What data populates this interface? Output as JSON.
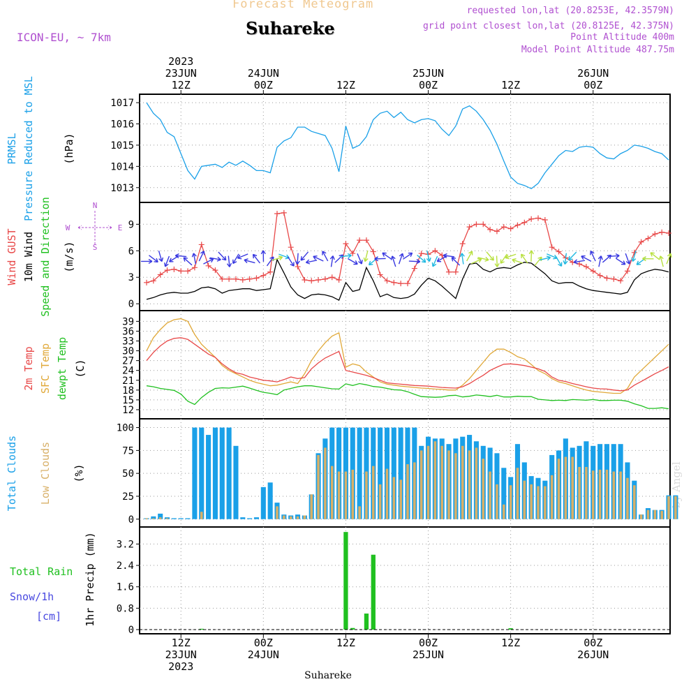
{
  "header": {
    "title": "Forecast Meteogram",
    "location": "Suhareke",
    "model": "ICON-EU, ~ 7km",
    "requested": "requested lon,lat (20.8253E, 42.3579N)",
    "grid_point": "grid point closest lon,lat (20.8125E, 42.375N)",
    "point_altitude": "Point Altitude 400m",
    "model_altitude": "Model Point Altitude 487.75m"
  },
  "footer_location": "Suhareke",
  "watermark": "by Angel",
  "colors": {
    "pressure": "#1aa0e8",
    "gust": "#e84848",
    "wind": "#000000",
    "direction": "#20c020",
    "temp": "#e84848",
    "sfc": "#e0a838",
    "dewpt": "#20c020",
    "total_clouds": "#1aa0e8",
    "low_clouds": "#d8b068",
    "rain": "#20c020",
    "snow": "#4848e0",
    "compass": "#b050d0"
  },
  "chart_data": [
    {
      "type": "line",
      "title": "PRMSL Pressure Reduced to MSL",
      "ylabel": "(hPa)",
      "ylim": [
        1012.5,
        1017.2
      ],
      "yticks": [
        1013,
        1014,
        1015,
        1016,
        1017
      ],
      "x_hours": [
        0,
        1,
        2,
        3,
        4,
        5,
        6,
        7,
        8,
        9,
        10,
        11,
        12,
        13,
        14,
        15,
        16,
        17,
        18,
        19,
        20,
        21,
        22,
        23,
        24,
        25,
        26,
        27,
        28,
        29,
        30,
        31,
        32,
        33,
        34,
        35,
        36,
        37,
        38,
        39,
        40,
        41,
        42,
        43,
        44,
        45,
        46,
        47,
        48,
        49,
        50,
        51,
        52,
        53,
        54,
        55,
        56,
        57,
        58,
        59,
        60,
        61,
        62,
        63,
        64,
        65,
        66,
        67,
        68,
        69,
        70,
        71,
        72,
        73,
        74,
        75,
        76
      ],
      "series": [
        {
          "name": "PRMSL",
          "values": [
            1017.0,
            1016.5,
            1016.2,
            1015.6,
            1015.4,
            1014.6,
            1013.8,
            1013.4,
            1014.0,
            1014.05,
            1014.1,
            1013.95,
            1014.2,
            1014.05,
            1014.25,
            1014.05,
            1013.8,
            1013.8,
            1013.7,
            1014.9,
            1015.2,
            1015.35,
            1015.85,
            1015.85,
            1015.65,
            1015.55,
            1015.45,
            1014.85,
            1013.75,
            1015.9,
            1014.85,
            1015.0,
            1015.4,
            1016.2,
            1016.5,
            1016.6,
            1016.3,
            1016.55,
            1016.2,
            1016.05,
            1016.2,
            1016.25,
            1016.15,
            1015.75,
            1015.45,
            1015.9,
            1016.7,
            1016.85,
            1016.6,
            1016.2,
            1015.7,
            1015.05,
            1014.25,
            1013.5,
            1013.2,
            1013.1,
            1012.95,
            1013.2,
            1013.7,
            1014.1,
            1014.5,
            1014.75,
            1014.7,
            1014.9,
            1014.95,
            1014.9,
            1014.6,
            1014.4,
            1014.35,
            1014.6,
            1014.75,
            1015.0,
            1014.95,
            1014.85,
            1014.7,
            1014.6,
            1014.3
          ]
        }
      ],
      "annotations": [
        "23JUN 12Z",
        "24JUN 00Z",
        "12Z",
        "25JUN 00Z",
        "12Z",
        "26JUN 00Z"
      ]
    },
    {
      "type": "line",
      "title": "Wind GUST / 10m Wind Speed and Direction",
      "ylabel": "(m/s)",
      "ylim": [
        -0.3,
        11.0
      ],
      "yticks": [
        0,
        3,
        6,
        9
      ],
      "compass": {
        "n": "N",
        "s": "S",
        "w": "W",
        "e": "E"
      },
      "series": [
        {
          "name": "Wind GUST",
          "values": [
            2.4,
            2.6,
            3.3,
            3.8,
            3.9,
            3.7,
            3.7,
            4.1,
            6.7,
            4.3,
            3.8,
            2.8,
            2.8,
            2.8,
            2.7,
            2.8,
            2.9,
            3.2,
            3.6,
            10.2,
            10.3,
            6.4,
            4.2,
            2.7,
            2.6,
            2.7,
            2.8,
            3.0,
            2.7,
            6.8,
            5.7,
            7.2,
            7.2,
            5.9,
            3.3,
            2.6,
            2.4,
            2.3,
            2.3,
            4.0,
            5.7,
            5.6,
            6.0,
            5.5,
            3.6,
            3.6,
            6.8,
            8.7,
            9.0,
            9.0,
            8.4,
            8.2,
            8.7,
            8.5,
            8.9,
            9.2,
            9.6,
            9.7,
            9.5,
            6.4,
            5.9,
            5.2,
            4.7,
            4.5,
            4.2,
            3.7,
            3.2,
            2.9,
            2.8,
            2.6,
            3.7,
            5.8,
            7.0,
            7.4,
            7.9,
            8.1,
            8.0
          ]
        },
        {
          "name": "10m Wind",
          "values": [
            0.5,
            0.7,
            1.0,
            1.2,
            1.3,
            1.2,
            1.2,
            1.4,
            1.8,
            1.9,
            1.7,
            1.2,
            1.5,
            1.6,
            1.7,
            1.7,
            1.5,
            1.6,
            1.7,
            5.0,
            3.5,
            1.9,
            1.0,
            0.6,
            1.0,
            1.1,
            1.0,
            0.8,
            0.4,
            2.4,
            1.4,
            1.6,
            4.1,
            2.6,
            0.8,
            1.1,
            0.7,
            0.6,
            0.7,
            1.1,
            2.1,
            2.9,
            2.6,
            2.0,
            1.3,
            0.6,
            2.8,
            4.5,
            4.6,
            3.9,
            3.6,
            4.0,
            4.1,
            4.0,
            4.4,
            4.7,
            4.6,
            4.0,
            3.4,
            2.6,
            2.3,
            2.4,
            2.4,
            2.0,
            1.7,
            1.5,
            1.4,
            1.3,
            1.2,
            1.1,
            1.3,
            2.7,
            3.4,
            3.7,
            3.9,
            3.8,
            3.6
          ]
        }
      ]
    },
    {
      "type": "line",
      "title": "2m Temp / SFC Temp / dewpt Temp",
      "ylabel": "(C)",
      "ylim": [
        10.5,
        41.0
      ],
      "yticks": [
        12,
        15,
        18,
        21,
        24,
        27,
        30,
        33,
        36,
        39
      ],
      "series": [
        {
          "name": "2m Temp",
          "values": [
            27.0,
            29.5,
            31.5,
            33.0,
            33.8,
            34.0,
            33.5,
            32.0,
            30.5,
            29.0,
            28.0,
            26.0,
            24.5,
            23.3,
            22.8,
            22.0,
            21.5,
            21.0,
            20.8,
            20.5,
            21.2,
            22.0,
            21.5,
            21.8,
            24.5,
            26.3,
            27.8,
            28.8,
            29.8,
            24.0,
            23.5,
            23.0,
            22.5,
            21.8,
            21.0,
            20.2,
            20.0,
            19.8,
            19.6,
            19.4,
            19.3,
            19.2,
            19.0,
            18.8,
            18.7,
            18.6,
            19.0,
            20.0,
            21.3,
            22.5,
            24.0,
            25.0,
            25.9,
            26.0,
            25.8,
            25.5,
            25.0,
            24.5,
            23.7,
            22.0,
            21.0,
            20.6,
            20.0,
            19.5,
            19.0,
            18.6,
            18.4,
            18.3,
            18.0,
            17.8,
            18.0,
            19.5,
            20.6,
            21.8,
            23.0,
            24.0,
            25.1
          ]
        },
        {
          "name": "SFC Temp",
          "values": [
            30.0,
            34.0,
            36.5,
            38.5,
            39.5,
            39.8,
            39.0,
            35.0,
            32.0,
            30.0,
            28.0,
            25.5,
            24.0,
            23.0,
            22.0,
            21.0,
            20.3,
            19.8,
            19.3,
            19.5,
            20.0,
            20.5,
            20.0,
            23.0,
            27.0,
            30.0,
            32.5,
            34.5,
            35.5,
            25.0,
            26.0,
            25.5,
            23.5,
            22.0,
            20.5,
            19.8,
            19.5,
            19.2,
            19.0,
            18.8,
            18.6,
            18.5,
            18.3,
            18.2,
            18.0,
            18.0,
            19.5,
            21.5,
            24.0,
            26.5,
            29.0,
            30.5,
            30.5,
            29.5,
            28.2,
            27.5,
            25.8,
            24.0,
            23.0,
            21.5,
            20.5,
            20.0,
            19.3,
            18.6,
            18.0,
            17.6,
            17.4,
            17.2,
            17.0,
            17.0,
            18.5,
            22.0,
            24.0,
            26.0,
            28.0,
            30.0,
            32.0
          ]
        },
        {
          "name": "dewpt Temp",
          "values": [
            19.3,
            19.0,
            18.5,
            18.2,
            17.9,
            16.8,
            14.6,
            13.6,
            15.7,
            17.3,
            18.5,
            18.7,
            18.6,
            18.9,
            19.2,
            18.6,
            17.9,
            17.3,
            17.0,
            16.6,
            18.0,
            18.5,
            19.0,
            19.3,
            19.3,
            19.0,
            18.7,
            18.4,
            18.3,
            19.9,
            19.4,
            20.0,
            19.6,
            19.1,
            18.9,
            18.5,
            18.1,
            18.0,
            17.5,
            16.7,
            16.0,
            15.9,
            15.8,
            15.9,
            16.3,
            16.4,
            15.9,
            16.1,
            16.5,
            16.3,
            16.0,
            16.4,
            15.9,
            15.9,
            16.1,
            16.0,
            16.0,
            15.2,
            15.0,
            14.8,
            14.9,
            14.8,
            15.1,
            15.0,
            14.9,
            15.1,
            14.8,
            14.8,
            14.9,
            14.9,
            14.6,
            13.8,
            13.2,
            12.4,
            12.4,
            12.6,
            12.3
          ]
        }
      ]
    },
    {
      "type": "bar",
      "title": "Total Clouds / Low Clouds",
      "ylabel": "(%)",
      "ylim": [
        -4,
        105
      ],
      "yticks": [
        0,
        25,
        50,
        75,
        100
      ],
      "series": [
        {
          "name": "Total Clouds",
          "values": [
            1,
            3,
            6,
            2,
            1,
            1,
            1,
            100,
            100,
            92,
            100,
            100,
            100,
            80,
            2,
            1,
            2,
            35,
            40,
            18,
            5,
            4,
            5,
            4,
            27,
            72,
            88,
            100,
            100,
            100,
            100,
            100,
            100,
            100,
            100,
            100,
            100,
            100,
            100,
            100,
            80,
            90,
            88,
            88,
            82,
            88,
            90,
            92,
            85,
            80,
            78,
            72,
            56,
            46,
            82,
            62,
            47,
            45,
            42,
            70,
            75,
            88,
            78,
            80,
            85,
            80,
            82,
            82,
            82,
            82,
            62,
            42,
            5,
            12,
            10,
            10,
            26,
            26
          ]
        },
        {
          "name": "Low Clouds",
          "values": [
            1,
            1,
            2,
            1,
            0,
            0,
            0,
            0,
            8,
            0,
            0,
            0,
            0,
            0,
            0,
            0,
            0,
            0,
            0,
            14,
            4,
            3,
            3,
            4,
            27,
            70,
            78,
            58,
            52,
            52,
            54,
            14,
            52,
            58,
            38,
            55,
            46,
            43,
            60,
            62,
            75,
            80,
            85,
            80,
            75,
            72,
            80,
            75,
            78,
            66,
            52,
            38,
            16,
            37,
            56,
            42,
            38,
            36,
            36,
            48,
            66,
            68,
            68,
            57,
            57,
            53,
            54,
            54,
            52,
            52,
            45,
            37,
            5,
            10,
            10,
            9,
            25,
            25
          ]
        }
      ]
    },
    {
      "type": "bar",
      "title": "Total Rain / Snow/1h [cm]",
      "ylabel": "1hr Precip (mm)",
      "ylim": [
        0,
        3.68
      ],
      "yticks": [
        0,
        0.8,
        1.6,
        2.4,
        3.2
      ],
      "ytick_labels": [
        "0",
        "0.8",
        "1.6",
        "2.4",
        "3.2"
      ],
      "legend": [
        "Total Rain",
        "Snow/1h",
        "[cm]"
      ],
      "series": [
        {
          "name": "Total Rain",
          "values": [
            0,
            0,
            0,
            0,
            0,
            0,
            0,
            0,
            0.03,
            0,
            0,
            0,
            0,
            0,
            0,
            0,
            0,
            0,
            0,
            0,
            0,
            0,
            0,
            0,
            0,
            0,
            0,
            0,
            0,
            3.65,
            0.06,
            0,
            0.6,
            2.8,
            0,
            0,
            0,
            0,
            0,
            0,
            0,
            0,
            0,
            0,
            0,
            0,
            0,
            0,
            0,
            0,
            0,
            0,
            0,
            0.05,
            0,
            0,
            0,
            0,
            0,
            0,
            0,
            0,
            0,
            0,
            0,
            0,
            0,
            0,
            0,
            0,
            0,
            0,
            0,
            0,
            0,
            0,
            0
          ]
        },
        {
          "name": "Snow/1h",
          "values": []
        }
      ]
    }
  ],
  "time_axis": {
    "top": [
      {
        "lines": [
          "2023",
          "23JUN",
          "12Z"
        ]
      },
      {
        "lines": [
          "24JUN",
          "00Z"
        ]
      },
      {
        "lines": [
          "12Z"
        ]
      },
      {
        "lines": [
          "25JUN",
          "00Z"
        ]
      },
      {
        "lines": [
          "12Z"
        ]
      },
      {
        "lines": [
          "26JUN",
          "00Z"
        ]
      }
    ],
    "bottom": [
      {
        "lines": [
          "12Z",
          "23JUN",
          "2023"
        ]
      },
      {
        "lines": [
          "00Z",
          "24JUN"
        ]
      },
      {
        "lines": [
          "12Z"
        ]
      },
      {
        "lines": [
          "00Z",
          "25JUN"
        ]
      },
      {
        "lines": [
          "12Z"
        ]
      },
      {
        "lines": [
          "00Z",
          "26JUN"
        ]
      }
    ],
    "major_hours": [
      5,
      17,
      29,
      41,
      53,
      65
    ]
  },
  "side_labels": {
    "pressure": [
      "PRMSL",
      "Pressure Reduced to MSL",
      "(hPa)"
    ],
    "wind": [
      "Wind GUST",
      "10m Wind",
      "Speed and Direction",
      "(m/s)"
    ],
    "temp": [
      "2m Temp",
      "SFC Temp",
      "dewpt Temp",
      "(C)"
    ],
    "clouds": [
      "Total Clouds",
      "Low Clouds",
      "(%)"
    ]
  }
}
